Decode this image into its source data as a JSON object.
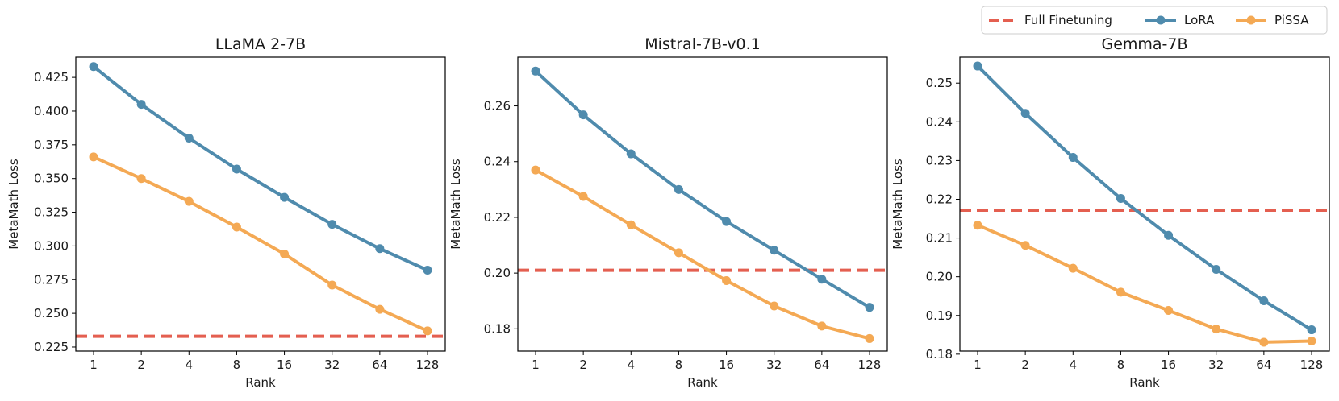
{
  "legend": {
    "entries": [
      {
        "label": "Full Finetuning",
        "color": "#e45f50",
        "style": "dashed"
      },
      {
        "label": "LoRA",
        "color": "#4f8bad",
        "style": "line-marker"
      },
      {
        "label": "PiSSA",
        "color": "#f4a954",
        "style": "line-marker"
      }
    ],
    "placement": "top-right"
  },
  "chart_data": [
    {
      "type": "line",
      "title": "LLaMA 2-7B",
      "xlabel": "Rank",
      "ylabel": "MetaMath Loss",
      "categories": [
        "1",
        "2",
        "4",
        "8",
        "16",
        "32",
        "64",
        "128"
      ],
      "ylim": [
        0.222,
        0.44
      ],
      "yticks": [
        "0.225",
        "0.250",
        "0.275",
        "0.300",
        "0.325",
        "0.350",
        "0.375",
        "0.400",
        "0.425"
      ],
      "baseline": {
        "name": "Full Finetuning",
        "value": 0.233
      },
      "series": [
        {
          "name": "LoRA",
          "values": [
            0.433,
            0.405,
            0.38,
            0.357,
            0.336,
            0.316,
            0.298,
            0.282
          ]
        },
        {
          "name": "PiSSA",
          "values": [
            0.366,
            0.35,
            0.333,
            0.314,
            0.294,
            0.271,
            0.253,
            0.237
          ]
        }
      ]
    },
    {
      "type": "line",
      "title": "Mistral-7B-v0.1",
      "xlabel": "Rank",
      "ylabel": "MetaMath Loss",
      "categories": [
        "1",
        "2",
        "4",
        "8",
        "16",
        "32",
        "64",
        "128"
      ],
      "ylim": [
        0.172,
        0.2775
      ],
      "yticks": [
        "0.18",
        "0.20",
        "0.22",
        "0.24",
        "0.26"
      ],
      "baseline": {
        "name": "Full Finetuning",
        "value": 0.201
      },
      "series": [
        {
          "name": "LoRA",
          "values": [
            0.2725,
            0.2568,
            0.2428,
            0.23,
            0.2185,
            0.2082,
            0.1978,
            0.1877
          ]
        },
        {
          "name": "PiSSA",
          "values": [
            0.237,
            0.2275,
            0.2173,
            0.2073,
            0.1973,
            0.1882,
            0.181,
            0.1765
          ]
        }
      ]
    },
    {
      "type": "line",
      "title": "Gemma-7B",
      "xlabel": "Rank",
      "ylabel": "MetaMath Loss",
      "categories": [
        "1",
        "2",
        "4",
        "8",
        "16",
        "32",
        "64",
        "128"
      ],
      "ylim": [
        0.1808,
        0.2567
      ],
      "yticks": [
        "0.18",
        "0.19",
        "0.20",
        "0.21",
        "0.22",
        "0.23",
        "0.24",
        "0.25"
      ],
      "baseline": {
        "name": "Full Finetuning",
        "value": 0.2172
      },
      "series": [
        {
          "name": "LoRA",
          "values": [
            0.2544,
            0.2422,
            0.2308,
            0.2202,
            0.2107,
            0.2019,
            0.1938,
            0.1863
          ]
        },
        {
          "name": "PiSSA",
          "values": [
            0.2133,
            0.2081,
            0.2022,
            0.196,
            0.1913,
            0.1865,
            0.1831,
            0.1834
          ]
        }
      ]
    }
  ]
}
